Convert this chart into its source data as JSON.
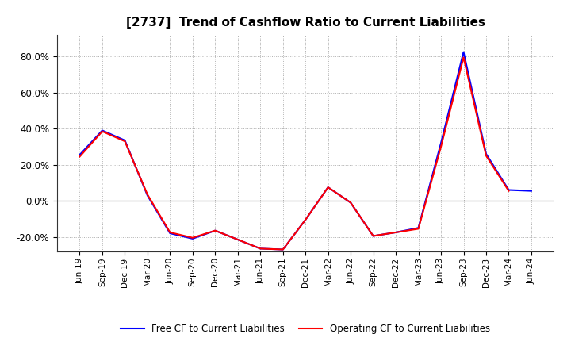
{
  "title": "[2737]  Trend of Cashflow Ratio to Current Liabilities",
  "x_labels": [
    "Jun-19",
    "Sep-19",
    "Dec-19",
    "Mar-20",
    "Jun-20",
    "Sep-20",
    "Dec-20",
    "Mar-21",
    "Jun-21",
    "Sep-21",
    "Dec-21",
    "Mar-22",
    "Jun-22",
    "Sep-22",
    "Dec-22",
    "Mar-23",
    "Jun-23",
    "Sep-23",
    "Dec-23",
    "Mar-24",
    "Jun-24"
  ],
  "operating_cf": [
    0.245,
    0.385,
    0.33,
    0.035,
    -0.175,
    -0.205,
    -0.165,
    -0.215,
    -0.265,
    -0.27,
    -0.105,
    0.075,
    -0.01,
    -0.195,
    -0.175,
    -0.155,
    0.3,
    0.795,
    0.25,
    0.055,
    null
  ],
  "free_cf": [
    0.255,
    0.39,
    0.335,
    0.03,
    -0.18,
    -0.21,
    -0.165,
    -0.215,
    -0.265,
    -0.27,
    -0.105,
    0.075,
    -0.01,
    -0.195,
    -0.175,
    -0.15,
    0.32,
    0.825,
    0.26,
    0.06,
    0.055
  ],
  "operating_color": "#ff0000",
  "free_color": "#0000ff",
  "ylim": [
    -0.28,
    0.92
  ],
  "yticks": [
    -0.2,
    0.0,
    0.2,
    0.4,
    0.6,
    0.8
  ],
  "background_color": "#ffffff",
  "grid_color": "#b0b0b0",
  "title_fontsize": 11,
  "legend_operating": "Operating CF to Current Liabilities",
  "legend_free": "Free CF to Current Liabilities",
  "line_width": 1.5
}
